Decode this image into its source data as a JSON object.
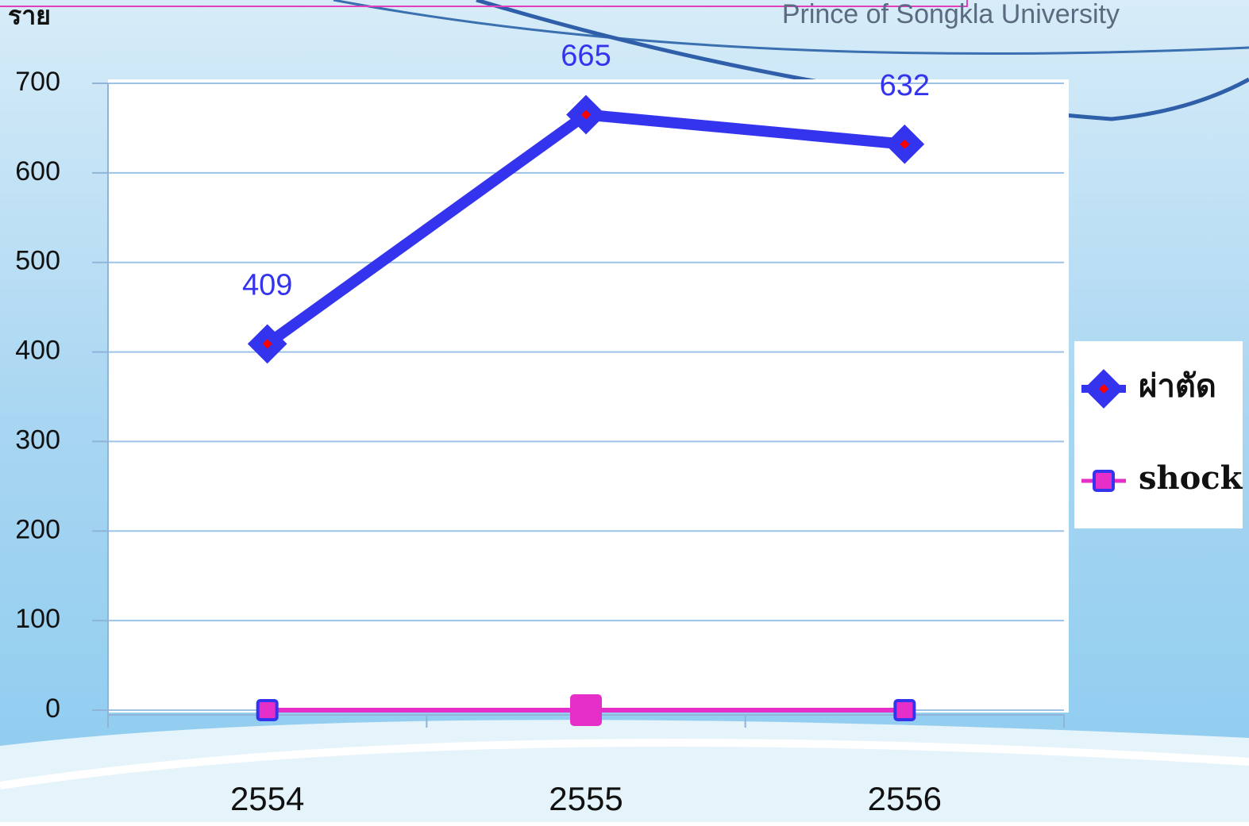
{
  "header": {
    "text": "Prince of Songkla University"
  },
  "chart_data": {
    "type": "line",
    "y_label": "ราย",
    "categories": [
      "2554",
      "2555",
      "2556"
    ],
    "series": [
      {
        "name": "ผ่าตัด",
        "color": "#3434ee",
        "marker": "diamond",
        "values": [
          409,
          665,
          632
        ],
        "show_labels": true
      },
      {
        "name": "shock",
        "color": "#e52fc8",
        "marker": "square",
        "values": [
          0,
          0,
          0
        ],
        "show_labels": false
      }
    ],
    "ylim": [
      0,
      700
    ],
    "yticks": [
      0,
      100,
      200,
      300,
      400,
      500,
      600,
      700
    ],
    "grid": true,
    "legend": "right"
  }
}
